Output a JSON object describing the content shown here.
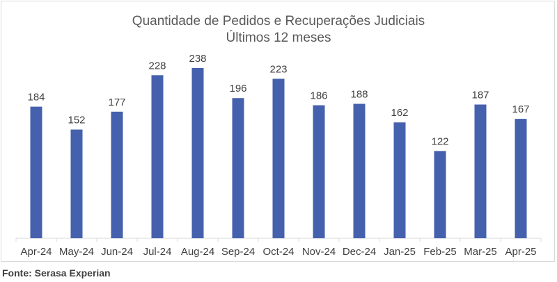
{
  "chart_data": {
    "type": "bar",
    "title": "Quantidade de Pedidos e Recuperações Judiciais",
    "subtitle": "Últimos 12 meses",
    "categories": [
      "Apr-24",
      "May-24",
      "Jun-24",
      "Jul-24",
      "Aug-24",
      "Sep-24",
      "Oct-24",
      "Nov-24",
      "Dec-24",
      "Jan-25",
      "Feb-25",
      "Mar-25",
      "Apr-25"
    ],
    "values": [
      184,
      152,
      177,
      228,
      238,
      196,
      223,
      186,
      188,
      162,
      122,
      187,
      167
    ],
    "bar_color": "#4561ad",
    "ylim": [
      0,
      238
    ],
    "grid": false,
    "data_labels": true
  },
  "source": "Fonte: Serasa Experian"
}
